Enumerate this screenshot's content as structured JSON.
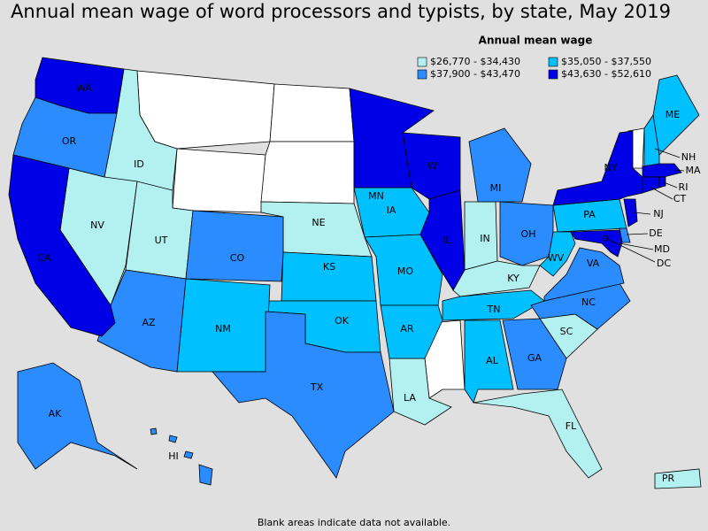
{
  "title": "Annual mean wage of word processors and typists, by state, May 2019",
  "legend": {
    "title": "Annual mean wage",
    "items": [
      {
        "label": "$26,770 - $34,430",
        "color": "#b3f0f0",
        "states": [
          "ID",
          "NV",
          "UT",
          "NE",
          "IN",
          "KY",
          "SC",
          "FL",
          "LA",
          "PR"
        ]
      },
      {
        "label": "$35,050 - $37,550",
        "color": "#00c0ff",
        "states": [
          "IA",
          "KS",
          "MO",
          "OK",
          "NM",
          "AR",
          "TN",
          "AL",
          "PA",
          "WV",
          "ME",
          "NH"
        ]
      },
      {
        "label": "$37,900 - $43,470",
        "color": "#2a8cff",
        "states": [
          "OR",
          "AZ",
          "CO",
          "TX",
          "MI",
          "OH",
          "GA",
          "NC",
          "VA",
          "AK",
          "HI",
          "DE"
        ]
      },
      {
        "label": "$43,630 - $52,610",
        "color": "#0000e6",
        "states": [
          "WA",
          "CA",
          "MN",
          "WI",
          "IL",
          "NY",
          "NJ",
          "MA",
          "CT",
          "RI",
          "MD",
          "DC"
        ]
      }
    ]
  },
  "footnote": "Blank areas indicate data not available."
}
